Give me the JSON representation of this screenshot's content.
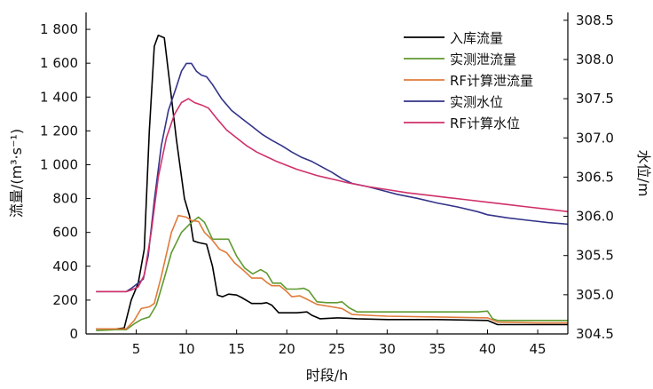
{
  "chart_data": {
    "type": "line",
    "xlabel": "时段/h",
    "ylabel_left": "流量/(m³·s⁻¹)",
    "ylabel_right": "水位/m",
    "xlim": [
      0,
      48
    ],
    "ylim_left": [
      0,
      1900
    ],
    "ylim_right": [
      304.5,
      308.6
    ],
    "x_ticks": [
      5,
      10,
      15,
      20,
      25,
      30,
      35,
      40,
      45
    ],
    "y_left_ticks": [
      {
        "value": 0,
        "label": "0"
      },
      {
        "value": 200,
        "label": "200"
      },
      {
        "value": 400,
        "label": "400"
      },
      {
        "value": 600,
        "label": "600"
      },
      {
        "value": 800,
        "label": "800"
      },
      {
        "value": 1000,
        "label": "1 000"
      },
      {
        "value": 1200,
        "label": "1 200"
      },
      {
        "value": 1400,
        "label": "1 400"
      },
      {
        "value": 1600,
        "label": "1 600"
      },
      {
        "value": 1800,
        "label": "1 800"
      }
    ],
    "y_right_ticks": [
      {
        "value": 304.5,
        "label": "304.5"
      },
      {
        "value": 305.0,
        "label": "305.0"
      },
      {
        "value": 305.5,
        "label": "305.5"
      },
      {
        "value": 306.0,
        "label": "306.0"
      },
      {
        "value": 306.5,
        "label": "306.5"
      },
      {
        "value": 307.0,
        "label": "307.0"
      },
      {
        "value": 307.5,
        "label": "307.5"
      },
      {
        "value": 308.0,
        "label": "308.0"
      },
      {
        "value": 308.5,
        "label": "308.5"
      }
    ],
    "legend_position": "top-right",
    "grid": false,
    "series": [
      {
        "name": "入库流量",
        "axis": "left",
        "color": "#000000",
        "points": [
          [
            1,
            30
          ],
          [
            2,
            30
          ],
          [
            3,
            30
          ],
          [
            3.8,
            35
          ],
          [
            4.5,
            200
          ],
          [
            5.2,
            300
          ],
          [
            5.8,
            500
          ],
          [
            6.3,
            1200
          ],
          [
            6.8,
            1700
          ],
          [
            7.2,
            1765
          ],
          [
            7.8,
            1750
          ],
          [
            8.3,
            1500
          ],
          [
            9,
            1150
          ],
          [
            9.8,
            800
          ],
          [
            10.3,
            700
          ],
          [
            10.7,
            550
          ],
          [
            11.2,
            540
          ],
          [
            12,
            530
          ],
          [
            12.6,
            400
          ],
          [
            13.1,
            230
          ],
          [
            13.6,
            220
          ],
          [
            14.2,
            235
          ],
          [
            15,
            230
          ],
          [
            15.5,
            215
          ],
          [
            16.5,
            180
          ],
          [
            17.5,
            180
          ],
          [
            18,
            185
          ],
          [
            18.5,
            170
          ],
          [
            19.2,
            125
          ],
          [
            20,
            125
          ],
          [
            21,
            125
          ],
          [
            22,
            130
          ],
          [
            22.5,
            110
          ],
          [
            23.3,
            90
          ],
          [
            25,
            95
          ],
          [
            26,
            93
          ],
          [
            27,
            90
          ],
          [
            30,
            85
          ],
          [
            35,
            85
          ],
          [
            40,
            80
          ],
          [
            41,
            55
          ],
          [
            45,
            55
          ],
          [
            48,
            55
          ]
        ]
      },
      {
        "name": "实测泄流量",
        "axis": "left",
        "color": "#5f9a30",
        "points": [
          [
            1,
            20
          ],
          [
            3,
            25
          ],
          [
            4,
            25
          ],
          [
            4.8,
            60
          ],
          [
            5.5,
            85
          ],
          [
            6.3,
            100
          ],
          [
            7,
            170
          ],
          [
            7.8,
            330
          ],
          [
            8.5,
            480
          ],
          [
            9.5,
            600
          ],
          [
            10.5,
            660
          ],
          [
            11.2,
            690
          ],
          [
            11.8,
            660
          ],
          [
            12.6,
            560
          ],
          [
            13.4,
            560
          ],
          [
            14.2,
            560
          ],
          [
            15,
            460
          ],
          [
            15.8,
            390
          ],
          [
            16.6,
            355
          ],
          [
            17.4,
            380
          ],
          [
            18,
            360
          ],
          [
            18.6,
            300
          ],
          [
            19.4,
            300
          ],
          [
            20,
            265
          ],
          [
            21,
            265
          ],
          [
            21.7,
            270
          ],
          [
            22.2,
            255
          ],
          [
            23,
            190
          ],
          [
            24,
            185
          ],
          [
            25,
            185
          ],
          [
            25.5,
            190
          ],
          [
            26.2,
            155
          ],
          [
            27,
            130
          ],
          [
            28,
            130
          ],
          [
            30,
            130
          ],
          [
            35,
            130
          ],
          [
            39,
            130
          ],
          [
            40,
            135
          ],
          [
            40.5,
            90
          ],
          [
            41,
            80
          ],
          [
            45,
            80
          ],
          [
            48,
            80
          ]
        ]
      },
      {
        "name": "RF计算泄流量",
        "axis": "left",
        "color": "#e07b3a",
        "points": [
          [
            1,
            30
          ],
          [
            3,
            30
          ],
          [
            4,
            30
          ],
          [
            4.8,
            80
          ],
          [
            5.5,
            150
          ],
          [
            6.3,
            160
          ],
          [
            6.8,
            180
          ],
          [
            7.5,
            340
          ],
          [
            8.5,
            600
          ],
          [
            9.2,
            700
          ],
          [
            10,
            690
          ],
          [
            10.5,
            670
          ],
          [
            11.2,
            665
          ],
          [
            11.8,
            600
          ],
          [
            12.5,
            560
          ],
          [
            13.3,
            500
          ],
          [
            14,
            480
          ],
          [
            14.8,
            420
          ],
          [
            15.6,
            380
          ],
          [
            16.5,
            330
          ],
          [
            17.5,
            330
          ],
          [
            18,
            305
          ],
          [
            18.5,
            285
          ],
          [
            19.3,
            285
          ],
          [
            20,
            250
          ],
          [
            20.5,
            220
          ],
          [
            21.3,
            225
          ],
          [
            22,
            205
          ],
          [
            23,
            175
          ],
          [
            24.5,
            160
          ],
          [
            25.5,
            150
          ],
          [
            26.5,
            115
          ],
          [
            28,
            110
          ],
          [
            30,
            105
          ],
          [
            35,
            100
          ],
          [
            40,
            95
          ],
          [
            41,
            70
          ],
          [
            45,
            65
          ],
          [
            48,
            65
          ]
        ]
      },
      {
        "name": "实测水位",
        "axis": "right",
        "color": "#33338a",
        "points": [
          [
            1,
            305.04
          ],
          [
            2,
            305.04
          ],
          [
            3,
            305.04
          ],
          [
            4,
            305.04
          ],
          [
            4.5,
            305.08
          ],
          [
            5.2,
            305.15
          ],
          [
            5.7,
            305.2
          ],
          [
            6.2,
            305.5
          ],
          [
            6.8,
            306.2
          ],
          [
            7.5,
            306.9
          ],
          [
            8.2,
            307.35
          ],
          [
            9,
            307.65
          ],
          [
            9.5,
            307.85
          ],
          [
            10,
            307.95
          ],
          [
            10.5,
            307.95
          ],
          [
            11,
            307.85
          ],
          [
            11.5,
            307.8
          ],
          [
            12,
            307.78
          ],
          [
            12.6,
            307.68
          ],
          [
            13.5,
            307.5
          ],
          [
            14.5,
            307.35
          ],
          [
            15.5,
            307.25
          ],
          [
            16.5,
            307.15
          ],
          [
            17.5,
            307.05
          ],
          [
            18.5,
            306.97
          ],
          [
            19.5,
            306.9
          ],
          [
            20.5,
            306.82
          ],
          [
            21.5,
            306.75
          ],
          [
            22.5,
            306.7
          ],
          [
            23.5,
            306.63
          ],
          [
            24.5,
            306.56
          ],
          [
            25.5,
            306.48
          ],
          [
            26.5,
            306.42
          ],
          [
            28,
            306.38
          ],
          [
            29.5,
            306.33
          ],
          [
            31,
            306.28
          ],
          [
            33,
            306.23
          ],
          [
            35,
            306.17
          ],
          [
            37,
            306.12
          ],
          [
            39,
            306.06
          ],
          [
            40,
            306.02
          ],
          [
            42,
            305.98
          ],
          [
            44,
            305.95
          ],
          [
            46,
            305.92
          ],
          [
            48,
            305.9
          ]
        ]
      },
      {
        "name": "RF计算水位",
        "axis": "right",
        "color": "#d0306a",
        "points": [
          [
            1,
            305.04
          ],
          [
            3,
            305.04
          ],
          [
            4,
            305.04
          ],
          [
            4.5,
            305.06
          ],
          [
            5.2,
            305.1
          ],
          [
            5.8,
            305.25
          ],
          [
            6.5,
            305.8
          ],
          [
            7.2,
            306.5
          ],
          [
            8,
            307.0
          ],
          [
            8.8,
            307.3
          ],
          [
            9.5,
            307.45
          ],
          [
            10.2,
            307.5
          ],
          [
            10.8,
            307.45
          ],
          [
            11.5,
            307.42
          ],
          [
            12.2,
            307.38
          ],
          [
            13,
            307.25
          ],
          [
            14,
            307.1
          ],
          [
            15,
            307.0
          ],
          [
            16,
            306.9
          ],
          [
            17,
            306.82
          ],
          [
            18,
            306.76
          ],
          [
            19,
            306.7
          ],
          [
            20,
            306.65
          ],
          [
            21,
            306.6
          ],
          [
            22,
            306.56
          ],
          [
            23,
            306.52
          ],
          [
            24,
            306.49
          ],
          [
            25,
            306.46
          ],
          [
            26,
            306.43
          ],
          [
            28,
            306.38
          ],
          [
            30,
            306.34
          ],
          [
            32,
            306.3
          ],
          [
            34,
            306.27
          ],
          [
            36,
            306.24
          ],
          [
            38,
            306.21
          ],
          [
            40,
            306.18
          ],
          [
            42,
            306.15
          ],
          [
            44,
            306.12
          ],
          [
            46,
            306.09
          ],
          [
            48,
            306.06
          ]
        ]
      }
    ]
  }
}
